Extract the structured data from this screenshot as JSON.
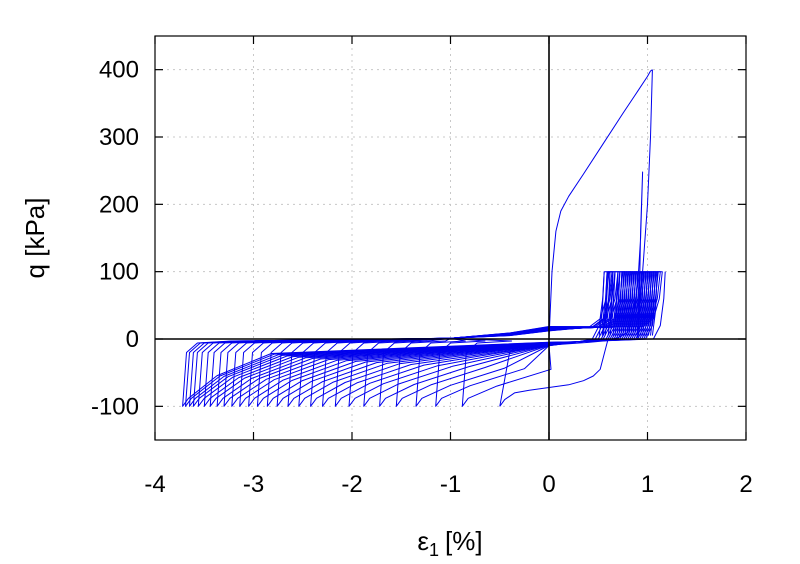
{
  "chart_data": {
    "type": "line",
    "title": "",
    "xlabel_main": "ε",
    "xlabel_sub": "1",
    "xlabel_unit": "[%]",
    "ylabel": "q [kPa]",
    "xlim": [
      -4,
      2
    ],
    "ylim": [
      -150,
      450
    ],
    "xticks": [
      -4,
      -3,
      -2,
      -1,
      0,
      1,
      2
    ],
    "xtick_labels": [
      "-4",
      "-3",
      "-2",
      "-1",
      "0",
      "1",
      "2"
    ],
    "yticks": [
      -100,
      0,
      100,
      200,
      300,
      400
    ],
    "ytick_labels": [
      "-100",
      "0",
      "100",
      "200",
      "300",
      "400"
    ],
    "grid": true,
    "zero_lines": true,
    "series_color": "#0000ee",
    "series": [
      {
        "name": "",
        "segment": "initial-loading",
        "x": [
          0.0,
          0.03,
          0.07,
          0.12,
          0.2,
          0.35,
          0.55,
          0.75,
          0.9,
          1.0,
          1.03,
          1.05
        ],
        "y": [
          0,
          100,
          160,
          190,
          212,
          245,
          290,
          335,
          368,
          390,
          398,
          400
        ]
      },
      {
        "name": "",
        "segment": "unloading-spike",
        "x": [
          1.05,
          1.03,
          1.0,
          0.96,
          0.93,
          0.91,
          0.9,
          0.92,
          0.93,
          0.95,
          0.93,
          0.9,
          0.86,
          0.8
        ],
        "y": [
          400,
          300,
          200,
          120,
          60,
          20,
          0,
          80,
          160,
          248,
          150,
          80,
          40,
          10
        ]
      },
      {
        "name": "",
        "segment": "first-extension",
        "x": [
          0.8,
          0.7,
          0.55,
          0.4,
          0.2,
          0.0,
          -0.2,
          -0.4,
          -0.5
        ],
        "y": [
          10,
          2,
          -3,
          -5,
          -7,
          -9,
          -12,
          -20,
          -100
        ]
      },
      {
        "name": "",
        "segment": "first-reload",
        "x": [
          -0.5,
          -0.45,
          -0.35,
          -0.2,
          0.0,
          0.2,
          0.35,
          0.45,
          0.52,
          0.6
        ],
        "y": [
          -100,
          -90,
          -80,
          -76,
          -72,
          -68,
          -62,
          -55,
          -45,
          0
        ]
      },
      {
        "name": "",
        "segment": "cycle-ends",
        "min_strain": [
          -0.88,
          -1.15,
          -1.35,
          -1.55,
          -1.72,
          -1.88,
          -2.03,
          -2.17,
          -2.3,
          -2.42,
          -2.54,
          -2.65,
          -2.76,
          -2.86,
          -2.96,
          -3.05,
          -3.14,
          -3.22,
          -3.3,
          -3.37,
          -3.44,
          -3.5,
          -3.56,
          -3.61,
          -3.65,
          -3.69,
          -3.72
        ],
        "max_strain": [
          0.56,
          0.59,
          0.62,
          0.65,
          0.67,
          0.7,
          0.72,
          0.74,
          0.76,
          0.78,
          0.8,
          0.82,
          0.84,
          0.86,
          0.88,
          0.9,
          0.92,
          0.94,
          0.96,
          0.98,
          1.0,
          1.02,
          1.04,
          1.06,
          1.08,
          1.1,
          1.18
        ],
        "q_max": 100,
        "q_min": -100
      }
    ]
  }
}
